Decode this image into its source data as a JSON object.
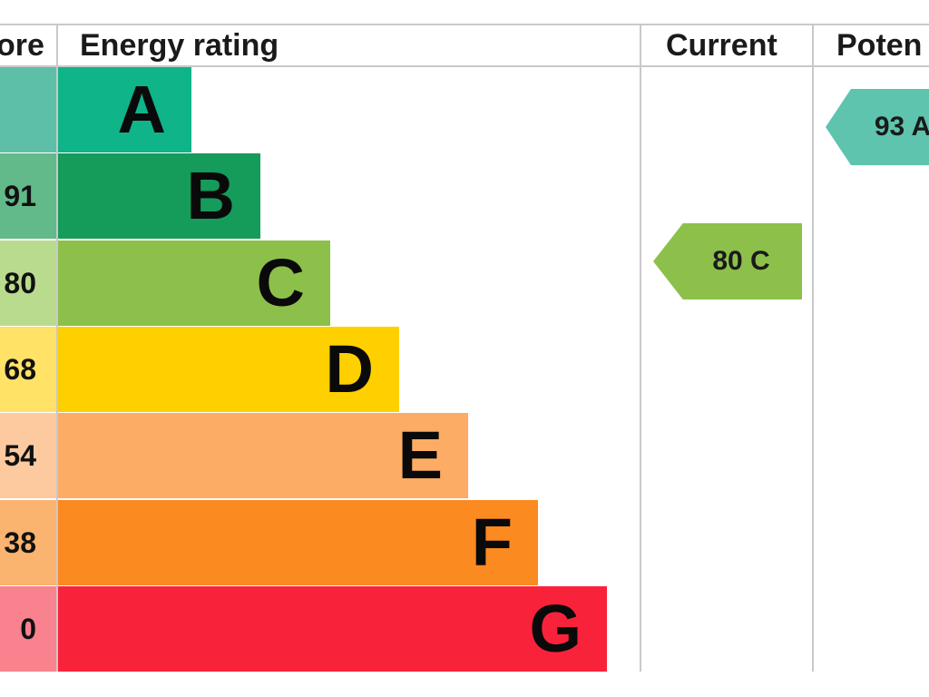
{
  "header": {
    "score_label": "ore",
    "rating_label": "Energy rating",
    "current_label": "Current",
    "potential_label": "Poten"
  },
  "chart_data": {
    "type": "bar",
    "categories": [
      "A",
      "B",
      "C",
      "D",
      "E",
      "F",
      "G"
    ],
    "score_ranges": [
      "",
      "91",
      "80",
      "68",
      "54",
      "38",
      "0"
    ],
    "bands": [
      {
        "letter": "A",
        "color": "#0fb489",
        "score_color": "#5ebfa8"
      },
      {
        "letter": "B",
        "color": "#159b5a",
        "score_color": "#62b989"
      },
      {
        "letter": "C",
        "color": "#8cc04a",
        "score_color": "#b9db8e"
      },
      {
        "letter": "D",
        "color": "#ffd000",
        "score_color": "#ffe266"
      },
      {
        "letter": "E",
        "color": "#fcac64",
        "score_color": "#fdcaa0"
      },
      {
        "letter": "F",
        "color": "#fb8a21",
        "score_color": "#fbb46f"
      },
      {
        "letter": "G",
        "color": "#f8233a",
        "score_color": "#f9828f"
      }
    ],
    "current": {
      "value": 80,
      "band": "C",
      "label": "80 C",
      "color": "#8cc04a"
    },
    "potential": {
      "value": 93,
      "band": "A",
      "label": "93 A",
      "color": "#5ec4ae"
    }
  }
}
